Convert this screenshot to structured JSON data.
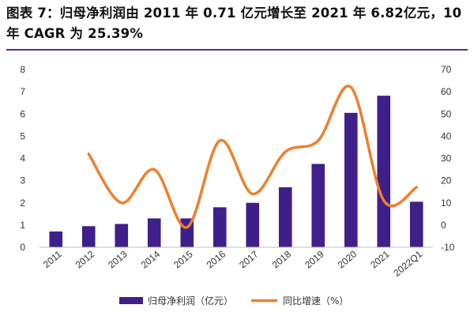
{
  "title": "图表 7：归母净利润由 2011 年 0.71 亿元增长至 2021 年 6.82亿元，10 年 CAGR 为 25.39%",
  "colors": {
    "bar": "#3f1f8a",
    "line": "#ef7f2d",
    "axis": "#bfbfbf",
    "title_rule": "#5a2a8a"
  },
  "chart_data": {
    "type": "bar+line",
    "categories": [
      "2011",
      "2012",
      "2013",
      "2014",
      "2015",
      "2016",
      "2017",
      "2018",
      "2019",
      "2020",
      "2021",
      "2022Q1"
    ],
    "series": [
      {
        "name": "归母净利润（亿元）",
        "type": "bar",
        "axis": "left",
        "values": [
          0.71,
          0.95,
          1.05,
          1.3,
          1.3,
          1.8,
          2.0,
          2.7,
          3.75,
          6.05,
          6.82,
          2.05
        ]
      },
      {
        "name": "同比增速（%）",
        "type": "line",
        "axis": "right",
        "values": [
          null,
          32,
          10,
          25,
          -1,
          38,
          14,
          33,
          38,
          62,
          11,
          17
        ]
      }
    ],
    "y_left": {
      "min": 0,
      "max": 8,
      "ticks": [
        "0",
        "1",
        "2",
        "3",
        "4",
        "5",
        "6",
        "7",
        "8"
      ]
    },
    "y_right": {
      "min": -10,
      "max": 70,
      "ticks": [
        "-10",
        "0",
        "10",
        "20",
        "30",
        "40",
        "50",
        "60",
        "70"
      ]
    },
    "legend": {
      "position": "bottom-center"
    },
    "grid": false
  }
}
